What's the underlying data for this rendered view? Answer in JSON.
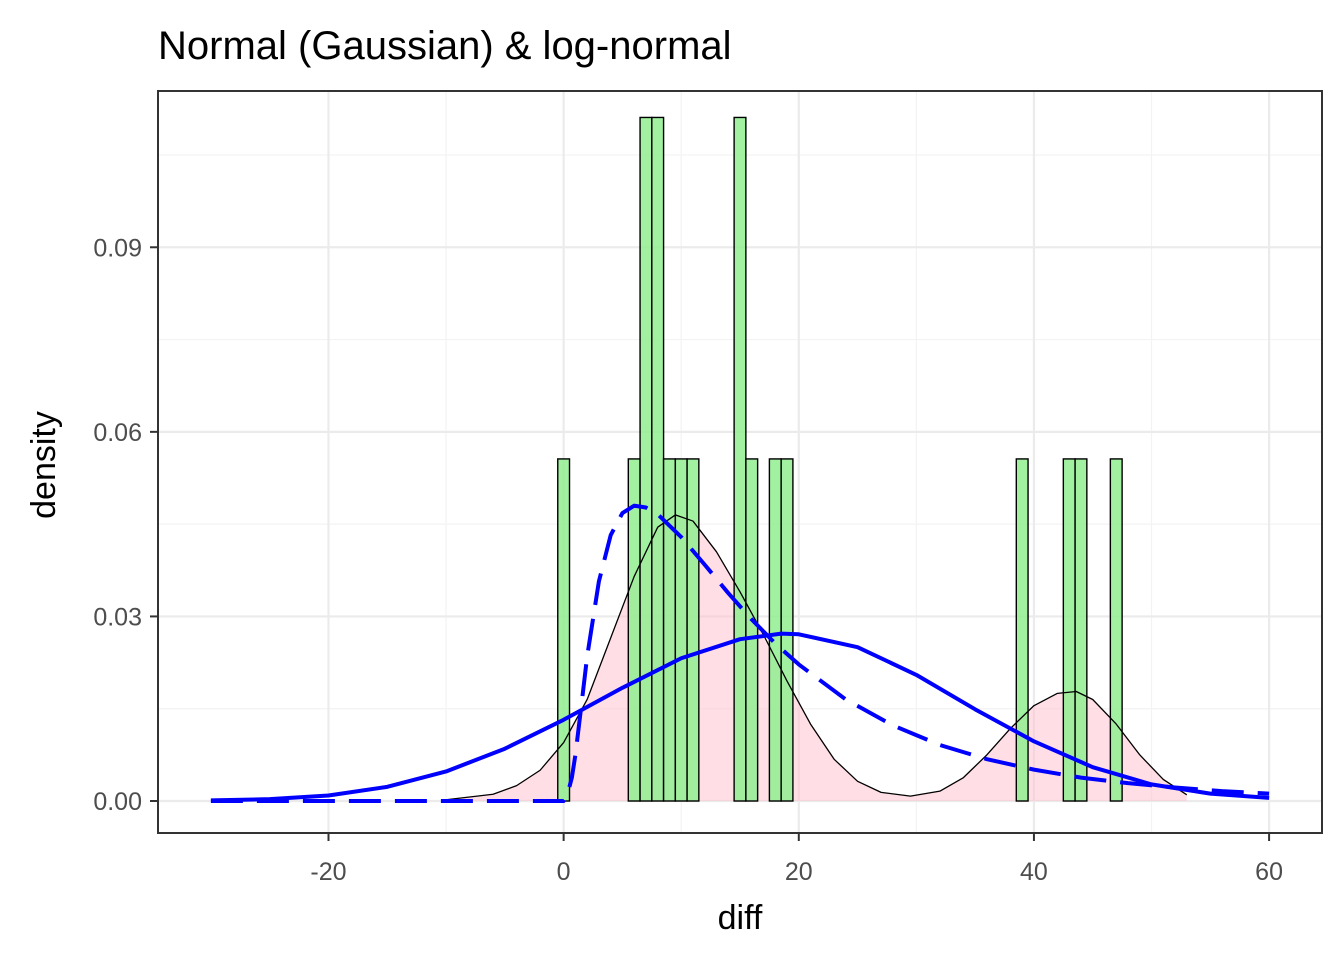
{
  "chart_data": {
    "type": "histogram",
    "title": "Normal (Gaussian) & log-normal",
    "xlabel": "diff",
    "ylabel": "density",
    "xlim": [
      -34.5,
      64.5
    ],
    "ylim": [
      -0.0052,
      0.1154
    ],
    "x_ticks": [
      -20,
      0,
      20,
      40,
      60
    ],
    "x_tick_labels": [
      "-20",
      "0",
      "20",
      "40",
      "60"
    ],
    "y_ticks": [
      0.0,
      0.03,
      0.06,
      0.09
    ],
    "y_tick_labels": [
      "0.00",
      "0.03",
      "0.06",
      "0.09"
    ],
    "grid": true,
    "colors": {
      "histogram_fill": "#90ee90",
      "histogram_border": "#000000",
      "kde_fill": "#ffc0cb",
      "kde_line": "#000000",
      "fit_line": "#0000ff",
      "panel_border": "#333333",
      "grid_major": "#ebebeb",
      "grid_minor": "#f3f3f3"
    },
    "histogram": {
      "bin_width": 1,
      "bins": [
        {
          "x0": -0.5,
          "x1": 0.5,
          "density": 0.0556
        },
        {
          "x0": 5.5,
          "x1": 6.5,
          "density": 0.0556
        },
        {
          "x0": 6.5,
          "x1": 7.5,
          "density": 0.1111
        },
        {
          "x0": 7.5,
          "x1": 8.5,
          "density": 0.1111
        },
        {
          "x0": 8.5,
          "x1": 9.5,
          "density": 0.0556
        },
        {
          "x0": 9.5,
          "x1": 10.5,
          "density": 0.0556
        },
        {
          "x0": 10.5,
          "x1": 11.5,
          "density": 0.0556
        },
        {
          "x0": 14.5,
          "x1": 15.5,
          "density": 0.1111
        },
        {
          "x0": 15.5,
          "x1": 16.5,
          "density": 0.0556
        },
        {
          "x0": 17.5,
          "x1": 18.5,
          "density": 0.0556
        },
        {
          "x0": 18.5,
          "x1": 19.5,
          "density": 0.0556
        },
        {
          "x0": 38.5,
          "x1": 39.5,
          "density": 0.0556
        },
        {
          "x0": 42.5,
          "x1": 43.5,
          "density": 0.0556
        },
        {
          "x0": 43.5,
          "x1": 44.5,
          "density": 0.0556
        },
        {
          "x0": 46.5,
          "x1": 47.5,
          "density": 0.0556
        }
      ]
    },
    "series": [
      {
        "type": "area",
        "style": "kde",
        "x": [
          -10,
          -6,
          -4,
          -2,
          0,
          2,
          4,
          6,
          8,
          9.5,
          11,
          13,
          15,
          17,
          19,
          21,
          23,
          25,
          27,
          29.5,
          32,
          34,
          36,
          38,
          40,
          42,
          43.6,
          45,
          47,
          49,
          51,
          53
        ],
        "y": [
          0.0002,
          0.0011,
          0.0025,
          0.005,
          0.0095,
          0.0165,
          0.0265,
          0.0365,
          0.0445,
          0.0465,
          0.0455,
          0.0405,
          0.034,
          0.027,
          0.0195,
          0.0125,
          0.0068,
          0.0032,
          0.0014,
          0.0008,
          0.0016,
          0.0038,
          0.0075,
          0.0118,
          0.0155,
          0.0175,
          0.0178,
          0.0165,
          0.0125,
          0.0075,
          0.0035,
          0.001
        ]
      },
      {
        "type": "line",
        "style": "solid",
        "x": [
          -30,
          -25,
          -20,
          -15,
          -10,
          -5,
          0,
          5,
          10,
          15,
          18.5,
          20,
          25,
          30,
          35,
          40,
          45,
          50,
          55,
          60
        ],
        "y": [
          0.0001,
          0.0003,
          0.0009,
          0.0023,
          0.0048,
          0.0085,
          0.0132,
          0.0184,
          0.0232,
          0.0263,
          0.0272,
          0.0271,
          0.025,
          0.0205,
          0.0149,
          0.0097,
          0.0055,
          0.0027,
          0.0012,
          0.0005
        ]
      },
      {
        "type": "line",
        "style": "dashed",
        "x": [
          -30,
          -10,
          0,
          0.3,
          0.7,
          1,
          1.5,
          2,
          3,
          4,
          5,
          6,
          7,
          8,
          10,
          12,
          14,
          16,
          18,
          20,
          24,
          28,
          32,
          36,
          40,
          44,
          48,
          52,
          56,
          60
        ],
        "y": [
          0.0,
          0.0,
          0.0,
          0.0009,
          0.0038,
          0.0075,
          0.0154,
          0.0235,
          0.0357,
          0.0432,
          0.0468,
          0.048,
          0.0477,
          0.0466,
          0.0429,
          0.0384,
          0.0338,
          0.0295,
          0.0256,
          0.0222,
          0.0165,
          0.0123,
          0.0091,
          0.0068,
          0.0051,
          0.0038,
          0.0029,
          0.0022,
          0.0016,
          0.0012
        ]
      }
    ]
  }
}
